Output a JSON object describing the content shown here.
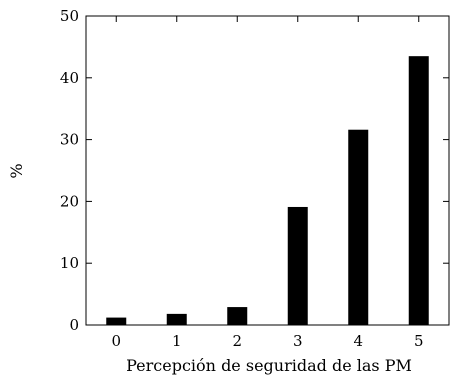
{
  "chart_data": {
    "type": "bar",
    "categories": [
      "0",
      "1",
      "2",
      "3",
      "4",
      "5"
    ],
    "values": [
      1.2,
      1.8,
      2.9,
      19.1,
      31.6,
      43.5
    ],
    "title": "",
    "xlabel": "Percepción de seguridad de las PM",
    "ylabel": "%",
    "ylim": [
      0,
      50
    ],
    "yticks": [
      "0",
      "10",
      "20",
      "30",
      "40",
      "50"
    ],
    "grid": false,
    "legend": "none",
    "bar_color": "#000000"
  }
}
